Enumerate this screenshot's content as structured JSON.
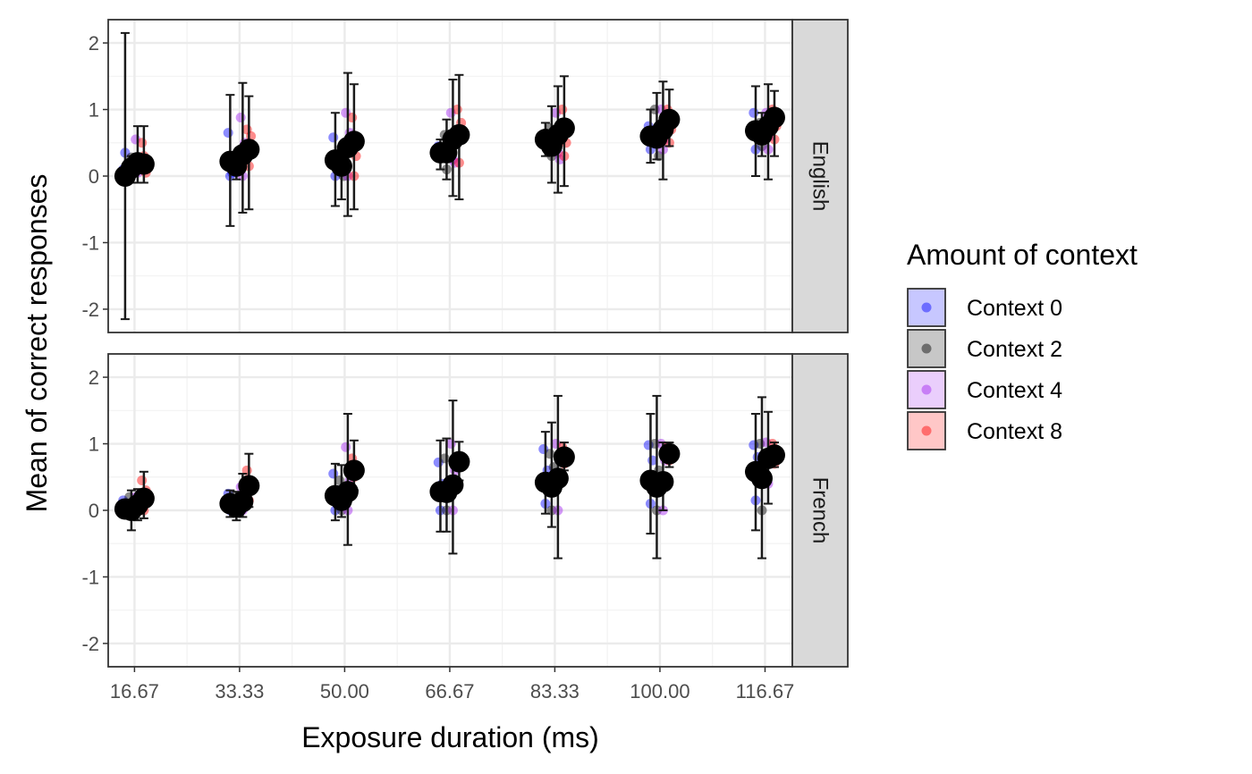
{
  "chart_data": {
    "type": "scatter",
    "title": "",
    "xlabel": "Exposure duration (ms)",
    "ylabel": "Mean of correct responses",
    "x_ticks": [
      "16.67",
      "33.33",
      "50.00",
      "66.67",
      "83.33",
      "100.00",
      "116.67"
    ],
    "x_tick_values": [
      16.67,
      33.33,
      50.0,
      66.67,
      83.33,
      100.0,
      116.67
    ],
    "xlim": [
      12.5,
      121.0
    ],
    "ylim": [
      -2.35,
      2.35
    ],
    "y_ticks": [
      "2",
      "1",
      "0",
      "-1",
      "-2"
    ],
    "y_tick_values": [
      2,
      1,
      0,
      -1,
      -2
    ],
    "grid": true,
    "legend": {
      "title": "Amount of context",
      "position": "right",
      "entries": [
        {
          "label": "Context 0",
          "color": "#0000ff"
        },
        {
          "label": "Context 2",
          "color": "#000000"
        },
        {
          "label": "Context 4",
          "color": "#a020f0"
        },
        {
          "label": "Context 8",
          "color": "#ff0000"
        }
      ]
    },
    "marker_color": "#000000",
    "panels": [
      {
        "label": "English",
        "groups": [
          {
            "x": 16.67,
            "context": "Context 0",
            "mean": 0.0,
            "lo": -2.15,
            "hi": 2.15,
            "points": [
              0.1,
              0.35,
              -0.05
            ]
          },
          {
            "x": 16.67,
            "context": "Context 2",
            "mean": 0.12,
            "lo": -0.1,
            "hi": 0.3,
            "points": [
              0.2,
              0.28,
              0.05
            ]
          },
          {
            "x": 16.67,
            "context": "Context 4",
            "mean": 0.2,
            "lo": -0.1,
            "hi": 0.75,
            "points": [
              0.55,
              0.05,
              0.2
            ]
          },
          {
            "x": 16.67,
            "context": "Context 8",
            "mean": 0.18,
            "lo": -0.1,
            "hi": 0.75,
            "points": [
              0.5,
              0.3,
              0.05
            ]
          },
          {
            "x": 33.33,
            "context": "Context 0",
            "mean": 0.22,
            "lo": -0.75,
            "hi": 1.22,
            "points": [
              0.65,
              0.0,
              0.05
            ]
          },
          {
            "x": 33.33,
            "context": "Context 2",
            "mean": 0.15,
            "lo": -0.05,
            "hi": 0.3,
            "points": [
              0.3,
              0.15,
              0.1
            ]
          },
          {
            "x": 33.33,
            "context": "Context 4",
            "mean": 0.32,
            "lo": -0.55,
            "hi": 1.4,
            "points": [
              0.88,
              0.0,
              0.5
            ]
          },
          {
            "x": 33.33,
            "context": "Context 8",
            "mean": 0.4,
            "lo": -0.5,
            "hi": 1.2,
            "points": [
              0.7,
              0.15,
              0.6
            ]
          },
          {
            "x": 50.0,
            "context": "Context 0",
            "mean": 0.24,
            "lo": -0.45,
            "hi": 0.95,
            "points": [
              0.58,
              0.0,
              0.25
            ]
          },
          {
            "x": 50.0,
            "context": "Context 2",
            "mean": 0.15,
            "lo": -0.35,
            "hi": 0.4,
            "points": [
              0.4,
              0.1,
              0.0
            ]
          },
          {
            "x": 50.0,
            "context": "Context 4",
            "mean": 0.43,
            "lo": -0.6,
            "hi": 1.55,
            "points": [
              0.95,
              0.0,
              0.65
            ]
          },
          {
            "x": 50.0,
            "context": "Context 8",
            "mean": 0.52,
            "lo": -0.5,
            "hi": 1.38,
            "points": [
              0.88,
              0.0,
              0.3
            ]
          },
          {
            "x": 66.67,
            "context": "Context 0",
            "mean": 0.35,
            "lo": 0.1,
            "hi": 0.55,
            "points": [
              0.45,
              0.3
            ]
          },
          {
            "x": 66.67,
            "context": "Context 2",
            "mean": 0.35,
            "lo": -0.05,
            "hi": 0.85,
            "points": [
              0.62,
              0.1
            ]
          },
          {
            "x": 66.67,
            "context": "Context 4",
            "mean": 0.55,
            "lo": -0.3,
            "hi": 1.45,
            "points": [
              0.95,
              0.25,
              0.2
            ]
          },
          {
            "x": 66.67,
            "context": "Context 8",
            "mean": 0.62,
            "lo": -0.35,
            "hi": 1.52,
            "points": [
              1.0,
              0.2,
              0.8
            ]
          },
          {
            "x": 83.33,
            "context": "Context 0",
            "mean": 0.55,
            "lo": 0.3,
            "hi": 0.8,
            "points": [
              0.6,
              0.45
            ]
          },
          {
            "x": 83.33,
            "context": "Context 2",
            "mean": 0.45,
            "lo": -0.1,
            "hi": 1.05,
            "points": [
              0.72,
              0.3
            ]
          },
          {
            "x": 83.33,
            "context": "Context 4",
            "mean": 0.62,
            "lo": -0.25,
            "hi": 1.35,
            "points": [
              0.95,
              0.35,
              0.25
            ]
          },
          {
            "x": 83.33,
            "context": "Context 8",
            "mean": 0.72,
            "lo": -0.15,
            "hi": 1.5,
            "points": [
              1.0,
              0.3,
              0.5
            ]
          },
          {
            "x": 100.0,
            "context": "Context 0",
            "mean": 0.6,
            "lo": 0.2,
            "hi": 1.0,
            "points": [
              0.75,
              0.4
            ]
          },
          {
            "x": 100.0,
            "context": "Context 2",
            "mean": 0.57,
            "lo": 0.25,
            "hi": 1.25,
            "points": [
              1.0,
              0.5,
              0.3
            ]
          },
          {
            "x": 100.0,
            "context": "Context 4",
            "mean": 0.7,
            "lo": -0.05,
            "hi": 1.42,
            "points": [
              1.0,
              0.4,
              0.55
            ]
          },
          {
            "x": 100.0,
            "context": "Context 8",
            "mean": 0.85,
            "lo": 0.45,
            "hi": 1.3,
            "points": [
              1.0,
              0.5,
              0.7
            ]
          },
          {
            "x": 116.67,
            "context": "Context 0",
            "mean": 0.68,
            "lo": 0.0,
            "hi": 1.35,
            "points": [
              0.95,
              0.4
            ]
          },
          {
            "x": 116.67,
            "context": "Context 2",
            "mean": 0.62,
            "lo": 0.3,
            "hi": 0.95,
            "points": [
              0.8,
              0.45
            ]
          },
          {
            "x": 116.67,
            "context": "Context 4",
            "mean": 0.75,
            "lo": -0.05,
            "hi": 1.38,
            "points": [
              0.95,
              0.4,
              0.6
            ]
          },
          {
            "x": 116.67,
            "context": "Context 8",
            "mean": 0.88,
            "lo": 0.3,
            "hi": 1.28,
            "points": [
              1.0,
              0.55,
              0.75
            ]
          }
        ]
      },
      {
        "label": "French",
        "groups": [
          {
            "x": 16.67,
            "context": "Context 0",
            "mean": 0.02,
            "lo": -0.1,
            "hi": 0.15,
            "points": [
              0.15,
              0.0
            ]
          },
          {
            "x": 16.67,
            "context": "Context 2",
            "mean": 0.0,
            "lo": -0.3,
            "hi": 0.3,
            "points": [
              0.2,
              -0.05
            ]
          },
          {
            "x": 16.67,
            "context": "Context 4",
            "mean": 0.08,
            "lo": -0.15,
            "hi": 0.32,
            "points": [
              0.2,
              0.0
            ]
          },
          {
            "x": 16.67,
            "context": "Context 8",
            "mean": 0.18,
            "lo": -0.12,
            "hi": 0.58,
            "points": [
              0.45,
              0.0,
              0.3
            ]
          },
          {
            "x": 33.33,
            "context": "Context 0",
            "mean": 0.1,
            "lo": -0.1,
            "hi": 0.3,
            "points": [
              0.25,
              0.0
            ]
          },
          {
            "x": 33.33,
            "context": "Context 2",
            "mean": 0.05,
            "lo": -0.15,
            "hi": 0.28,
            "points": [
              0.2,
              0.0
            ]
          },
          {
            "x": 33.33,
            "context": "Context 4",
            "mean": 0.13,
            "lo": -0.1,
            "hi": 0.55,
            "points": [
              0.35,
              0.0
            ]
          },
          {
            "x": 33.33,
            "context": "Context 8",
            "mean": 0.37,
            "lo": 0.05,
            "hi": 0.85,
            "points": [
              0.6,
              0.15
            ]
          },
          {
            "x": 50.0,
            "context": "Context 0",
            "mean": 0.22,
            "lo": -0.15,
            "hi": 0.7,
            "points": [
              0.55,
              0.0,
              0.3
            ]
          },
          {
            "x": 50.0,
            "context": "Context 2",
            "mean": 0.15,
            "lo": -0.1,
            "hi": 0.68,
            "points": [
              0.45,
              0.0
            ]
          },
          {
            "x": 50.0,
            "context": "Context 4",
            "mean": 0.28,
            "lo": -0.52,
            "hi": 1.45,
            "points": [
              0.95,
              0.0,
              0.45
            ]
          },
          {
            "x": 50.0,
            "context": "Context 8",
            "mean": 0.6,
            "lo": 0.3,
            "hi": 1.05,
            "points": [
              0.78,
              0.5
            ]
          },
          {
            "x": 66.67,
            "context": "Context 0",
            "mean": 0.28,
            "lo": -0.32,
            "hi": 1.05,
            "points": [
              0.72,
              0.0,
              0.4
            ]
          },
          {
            "x": 66.67,
            "context": "Context 2",
            "mean": 0.27,
            "lo": -0.32,
            "hi": 1.08,
            "points": [
              0.78,
              0.0
            ]
          },
          {
            "x": 66.67,
            "context": "Context 4",
            "mean": 0.38,
            "lo": -0.65,
            "hi": 1.65,
            "points": [
              1.0,
              0.0,
              0.6
            ]
          },
          {
            "x": 66.67,
            "context": "Context 8",
            "mean": 0.73,
            "lo": 0.45,
            "hi": 1.03,
            "points": [
              0.8,
              0.7
            ]
          },
          {
            "x": 83.33,
            "context": "Context 0",
            "mean": 0.42,
            "lo": -0.05,
            "hi": 1.18,
            "points": [
              0.92,
              0.1,
              0.6
            ]
          },
          {
            "x": 83.33,
            "context": "Context 2",
            "mean": 0.35,
            "lo": -0.25,
            "hi": 1.32,
            "points": [
              0.85,
              0.0,
              0.65
            ]
          },
          {
            "x": 83.33,
            "context": "Context 4",
            "mean": 0.48,
            "lo": -0.72,
            "hi": 1.72,
            "points": [
              1.0,
              0.0,
              0.75
            ]
          },
          {
            "x": 83.33,
            "context": "Context 8",
            "mean": 0.8,
            "lo": 0.6,
            "hi": 1.02,
            "points": [
              0.95,
              0.7
            ]
          },
          {
            "x": 100.0,
            "context": "Context 0",
            "mean": 0.45,
            "lo": -0.35,
            "hi": 1.45,
            "points": [
              0.98,
              0.1,
              0.75
            ]
          },
          {
            "x": 100.0,
            "context": "Context 2",
            "mean": 0.35,
            "lo": -0.72,
            "hi": 1.72,
            "points": [
              1.0,
              0.0,
              0.6
            ]
          },
          {
            "x": 100.0,
            "context": "Context 4",
            "mean": 0.43,
            "lo": 0.0,
            "hi": 1.02,
            "points": [
              1.0,
              0.0,
              0.75
            ]
          },
          {
            "x": 100.0,
            "context": "Context 8",
            "mean": 0.85,
            "lo": 0.65,
            "hi": 1.02,
            "points": [
              0.95,
              0.75
            ]
          },
          {
            "x": 116.67,
            "context": "Context 0",
            "mean": 0.58,
            "lo": -0.3,
            "hi": 1.45,
            "points": [
              0.98,
              0.15,
              0.8
            ]
          },
          {
            "x": 116.67,
            "context": "Context 2",
            "mean": 0.48,
            "lo": -0.72,
            "hi": 1.7,
            "points": [
              1.0,
              0.0,
              0.8
            ]
          },
          {
            "x": 116.67,
            "context": "Context 4",
            "mean": 0.78,
            "lo": 0.1,
            "hi": 1.48,
            "points": [
              1.02,
              0.4,
              0.7
            ]
          },
          {
            "x": 116.67,
            "context": "Context 8",
            "mean": 0.83,
            "lo": 0.65,
            "hi": 1.02,
            "points": [
              1.0,
              0.7
            ]
          }
        ]
      }
    ]
  }
}
